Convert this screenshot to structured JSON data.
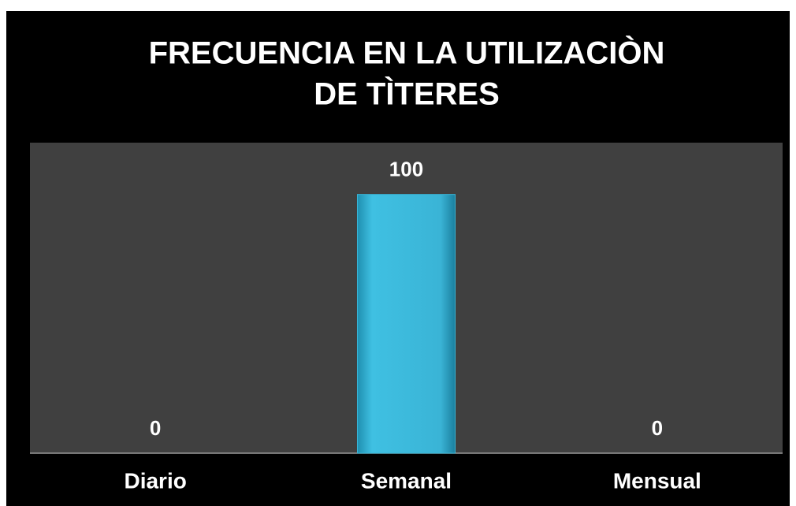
{
  "chart_data": {
    "type": "bar",
    "title": [
      "FRECUENCIA EN LA UTILIZACIÒN",
      "DE TÌTERES"
    ],
    "categories": [
      "Diario",
      "Semanal",
      "Mensual"
    ],
    "values": [
      0,
      100,
      0
    ],
    "color": "#38b6d8",
    "ylim": [
      0,
      120
    ]
  }
}
